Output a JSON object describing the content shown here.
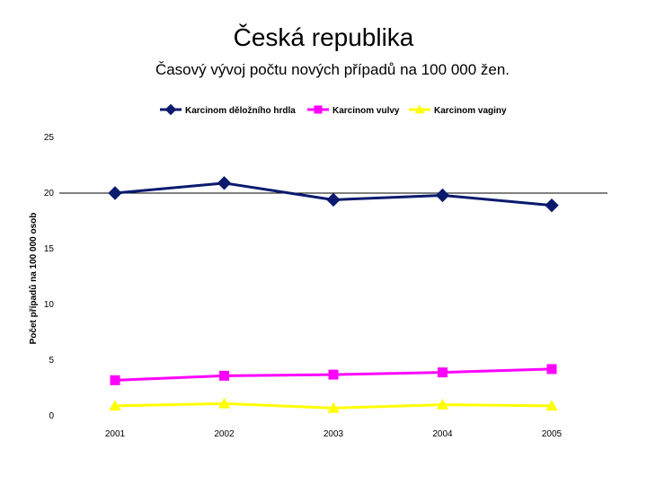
{
  "title": "Česká republika",
  "subtitle": "Časový vývoj počtu nových případů na 100 000 žen.",
  "chart_data": {
    "type": "line",
    "x": [
      "2001",
      "2002",
      "2003",
      "2004",
      "2005"
    ],
    "ylabel": "Počet případů na 100 000 osob",
    "xlabel": "",
    "ylim": [
      0,
      25
    ],
    "yticks": [
      0,
      5,
      10,
      15,
      20,
      25
    ],
    "legend_position": "top",
    "gridline_at": 20,
    "series": [
      {
        "name": "Karcinom děložního hrdla",
        "color": "#0a1a6e",
        "marker": "diamond",
        "values": [
          20.0,
          20.9,
          19.4,
          19.8,
          18.9
        ]
      },
      {
        "name": "Karcinom vulvy",
        "color": "#ff00ff",
        "marker": "square",
        "values": [
          3.2,
          3.6,
          3.7,
          3.9,
          4.2
        ]
      },
      {
        "name": "Karcinom vaginy",
        "color": "#ffff00",
        "marker": "triangle",
        "values": [
          0.9,
          1.1,
          0.7,
          1.0,
          0.9
        ]
      }
    ]
  }
}
